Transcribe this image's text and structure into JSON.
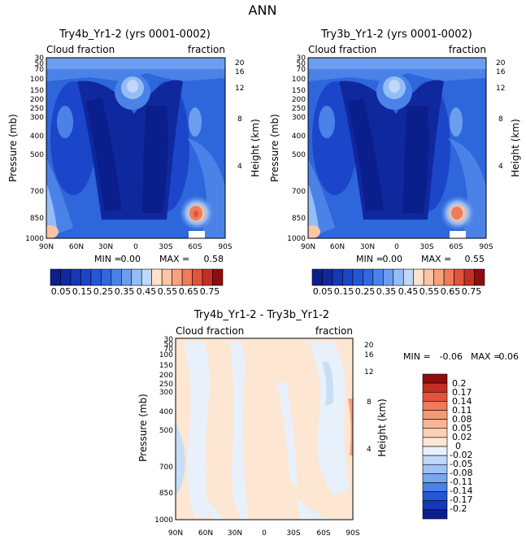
{
  "figure_title": "ANN",
  "colors": {
    "abs_scale": [
      "#0b1f8c",
      "#10289e",
      "#1637b8",
      "#1c46c9",
      "#2457d6",
      "#3168df",
      "#4a82e8",
      "#6c9eef",
      "#95bdf5",
      "#c0d8fa",
      "#ffe2cc",
      "#fcc5a4",
      "#f7a27c",
      "#ef7b59",
      "#e1533d",
      "#c62e25",
      "#8f0d0d"
    ],
    "diff_scale": [
      "#e8f1fb",
      "#fde6d2",
      "#c9def6"
    ]
  },
  "chart_data": [
    {
      "type": "heatmap",
      "title": "Try4b_Yr1-2 (yrs 0001-0002)",
      "subtitle_left": "Cloud fraction",
      "subtitle_right": "fraction",
      "xlabel": "",
      "ylabel": "Pressure (mb)",
      "ylabel_right": "Height (km)",
      "x_ticks": [
        "90N",
        "60N",
        "30N",
        "0",
        "30S",
        "60S",
        "90S"
      ],
      "y_ticks": [
        "30",
        "50",
        "70",
        "100",
        "150",
        "200",
        "250",
        "300",
        "400",
        "500",
        "700",
        "850",
        "1000"
      ],
      "height_ticks": [
        "20",
        "16",
        "12",
        "8",
        "4"
      ],
      "min_label": "MIN =",
      "min_value": "0.00",
      "max_label": "MAX =",
      "max_value": "0.58",
      "colorbar_labels": [
        "0.05",
        "0.15",
        "0.25",
        "0.35",
        "0.45",
        "0.55",
        "0.65",
        "0.75"
      ]
    },
    {
      "type": "heatmap",
      "title": "Try3b_Yr1-2 (yrs 0001-0002)",
      "subtitle_left": "Cloud fraction",
      "subtitle_right": "fraction",
      "xlabel": "",
      "ylabel": "Pressure (mb)",
      "ylabel_right": "Height (km)",
      "x_ticks": [
        "90N",
        "60N",
        "30N",
        "0",
        "30S",
        "60S",
        "90S"
      ],
      "y_ticks": [
        "30",
        "50",
        "70",
        "100",
        "150",
        "200",
        "250",
        "300",
        "400",
        "500",
        "700",
        "850",
        "1000"
      ],
      "height_ticks": [
        "20",
        "16",
        "12",
        "8",
        "4"
      ],
      "min_label": "MIN =",
      "min_value": "0.00",
      "max_label": "MAX =",
      "max_value": "0.55",
      "colorbar_labels": [
        "0.05",
        "0.15",
        "0.25",
        "0.35",
        "0.45",
        "0.55",
        "0.65",
        "0.75"
      ]
    },
    {
      "type": "heatmap",
      "title": "Try4b_Yr1-2 - Try3b_Yr1-2",
      "subtitle_left": "Cloud fraction",
      "subtitle_right": "fraction",
      "xlabel": "",
      "ylabel": "Pressure (mb)",
      "ylabel_right": "Height (km)",
      "x_ticks": [
        "90N",
        "60N",
        "30N",
        "0",
        "30S",
        "60S",
        "90S"
      ],
      "y_ticks": [
        "30",
        "50",
        "70",
        "100",
        "150",
        "200",
        "250",
        "300",
        "400",
        "500",
        "700",
        "850",
        "1000"
      ],
      "height_ticks": [
        "20",
        "16",
        "12",
        "8",
        "4"
      ],
      "min_label": "MIN =",
      "min_value": "-0.06",
      "max_label": "MAX =",
      "max_value": "0.06",
      "colorbar_labels": [
        "0.2",
        "0.17",
        "0.14",
        "0.11",
        "0.08",
        "0.05",
        "0.02",
        "0",
        "-0.02",
        "-0.05",
        "-0.08",
        "-0.11",
        "-0.14",
        "-0.17",
        "-0.2"
      ]
    }
  ]
}
